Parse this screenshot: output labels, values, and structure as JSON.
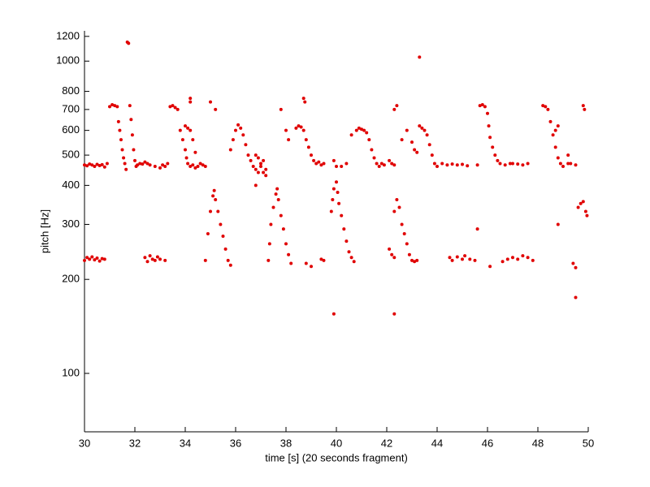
{
  "chart_data": {
    "type": "scatter",
    "xlabel": "time [s] (20 seconds fragment)",
    "ylabel": "pitch [Hz]",
    "color": "#e00000",
    "ylog": true,
    "grid": false,
    "xlim": [
      30,
      50
    ],
    "xticks": [
      30,
      32,
      34,
      36,
      38,
      40,
      42,
      44,
      46,
      48,
      50
    ],
    "ylim": [
      65,
      1250
    ],
    "yticks": [
      100,
      200,
      300,
      400,
      500,
      600,
      700,
      800,
      1000,
      1200
    ],
    "x": [
      30.0,
      30.1,
      30.2,
      30.3,
      30.4,
      30.5,
      30.6,
      30.7,
      30.8,
      30.9,
      30.0,
      30.1,
      30.2,
      30.3,
      30.4,
      30.5,
      30.6,
      30.7,
      30.8,
      31.0,
      31.1,
      31.2,
      31.3,
      31.35,
      31.4,
      31.45,
      31.5,
      31.55,
      31.6,
      31.65,
      31.7,
      31.75,
      31.8,
      31.85,
      31.9,
      31.95,
      32.0,
      32.05,
      32.1,
      32.2,
      32.3,
      32.4,
      32.5,
      32.6,
      32.8,
      33.0,
      33.1,
      33.2,
      33.3,
      32.4,
      32.5,
      32.6,
      32.7,
      32.8,
      32.9,
      33.0,
      33.2,
      33.4,
      33.5,
      33.6,
      33.7,
      33.8,
      33.9,
      34.0,
      34.05,
      34.1,
      34.2,
      34.3,
      34.4,
      34.5,
      34.6,
      34.7,
      34.8,
      34.0,
      34.1,
      34.2,
      34.3,
      34.4,
      34.2,
      34.2,
      34.8,
      34.9,
      35.0,
      35.1,
      35.15,
      35.2,
      35.3,
      35.4,
      35.5,
      35.6,
      35.7,
      35.8,
      35.0,
      35.2,
      35.8,
      35.9,
      36.0,
      36.1,
      36.2,
      36.3,
      36.4,
      36.5,
      36.6,
      36.7,
      36.8,
      36.9,
      37.0,
      37.1,
      37.2,
      36.8,
      36.9,
      37.0,
      37.1,
      37.2,
      36.8,
      37.3,
      37.35,
      37.4,
      37.5,
      37.6,
      37.65,
      37.7,
      37.8,
      37.9,
      38.0,
      38.1,
      38.2,
      37.8,
      38.0,
      38.1,
      38.4,
      38.5,
      38.6,
      38.7,
      38.7,
      38.75,
      38.8,
      38.9,
      39.0,
      39.1,
      39.2,
      39.3,
      39.4,
      39.5,
      38.8,
      39.0,
      39.4,
      39.5,
      39.8,
      39.85,
      39.9,
      40.0,
      40.05,
      40.1,
      40.2,
      40.3,
      40.4,
      40.5,
      40.6,
      40.7,
      39.9,
      39.9,
      40.0,
      40.2,
      40.4,
      40.6,
      40.8,
      40.9,
      41.0,
      41.1,
      41.2,
      41.3,
      41.4,
      41.5,
      41.6,
      41.7,
      41.8,
      41.9,
      42.1,
      42.2,
      42.3,
      42.1,
      42.2,
      42.3,
      42.3,
      42.4,
      42.5,
      42.6,
      42.7,
      42.8,
      42.9,
      43.0,
      43.1,
      43.2,
      42.3,
      42.3,
      42.4,
      42.6,
      42.8,
      43.0,
      43.1,
      43.2,
      43.3,
      43.3,
      43.4,
      43.5,
      43.6,
      43.7,
      43.8,
      43.9,
      44.0,
      44.2,
      44.4,
      44.6,
      44.8,
      45.0,
      45.2,
      44.5,
      44.6,
      44.8,
      45.0,
      45.1,
      45.3,
      45.5,
      45.6,
      45.6,
      45.7,
      45.8,
      45.9,
      46.0,
      46.05,
      46.1,
      46.2,
      46.3,
      46.4,
      46.5,
      46.7,
      46.9,
      46.1,
      46.6,
      46.8,
      47.0,
      47.2,
      47.4,
      47.6,
      47.8,
      47.0,
      47.2,
      47.4,
      47.6,
      48.2,
      48.3,
      48.4,
      48.5,
      48.6,
      48.7,
      48.8,
      48.9,
      49.0,
      49.2,
      48.7,
      48.8,
      48.8,
      49.2,
      49.3,
      49.5,
      49.4,
      49.5,
      49.5,
      49.6,
      49.7,
      49.8,
      49.9,
      49.95,
      49.8,
      49.85
    ],
    "values": [
      465,
      462,
      468,
      465,
      460,
      467,
      463,
      466,
      458,
      470,
      230,
      235,
      232,
      236,
      231,
      234,
      229,
      233,
      232,
      715,
      725,
      720,
      715,
      640,
      600,
      560,
      520,
      490,
      470,
      450,
      1150,
      1140,
      720,
      650,
      580,
      520,
      480,
      460,
      465,
      470,
      468,
      475,
      470,
      465,
      460,
      455,
      465,
      460,
      470,
      235,
      228,
      238,
      232,
      230,
      236,
      232,
      230,
      715,
      720,
      710,
      700,
      600,
      560,
      520,
      490,
      470,
      460,
      465,
      455,
      460,
      470,
      465,
      460,
      620,
      610,
      600,
      560,
      510,
      760,
      740,
      230,
      280,
      330,
      370,
      385,
      360,
      330,
      300,
      275,
      250,
      230,
      222,
      740,
      700,
      520,
      560,
      600,
      625,
      610,
      580,
      540,
      500,
      480,
      460,
      450,
      440,
      460,
      480,
      450,
      500,
      490,
      470,
      440,
      430,
      400,
      230,
      260,
      300,
      340,
      375,
      390,
      360,
      320,
      290,
      260,
      240,
      225,
      700,
      600,
      560,
      610,
      620,
      615,
      600,
      760,
      740,
      560,
      530,
      500,
      480,
      470,
      475,
      465,
      470,
      225,
      220,
      232,
      230,
      330,
      360,
      390,
      410,
      380,
      350,
      320,
      290,
      265,
      245,
      235,
      228,
      155,
      480,
      460,
      460,
      470,
      580,
      600,
      610,
      605,
      600,
      590,
      560,
      520,
      490,
      470,
      460,
      470,
      465,
      480,
      470,
      465,
      250,
      240,
      235,
      330,
      360,
      340,
      300,
      280,
      260,
      240,
      230,
      228,
      230,
      155,
      700,
      720,
      560,
      600,
      550,
      520,
      510,
      1030,
      620,
      610,
      600,
      580,
      540,
      500,
      470,
      460,
      470,
      465,
      468,
      465,
      467,
      462,
      235,
      230,
      236,
      232,
      238,
      232,
      230,
      290,
      465,
      720,
      725,
      715,
      680,
      620,
      570,
      530,
      500,
      480,
      470,
      465,
      470,
      220,
      228,
      232,
      235,
      232,
      238,
      235,
      230,
      470,
      468,
      465,
      470,
      720,
      715,
      700,
      640,
      580,
      530,
      490,
      470,
      460,
      470,
      600,
      620,
      300,
      500,
      470,
      465,
      225,
      218,
      175,
      340,
      350,
      355,
      330,
      320,
      720,
      700
    ]
  }
}
